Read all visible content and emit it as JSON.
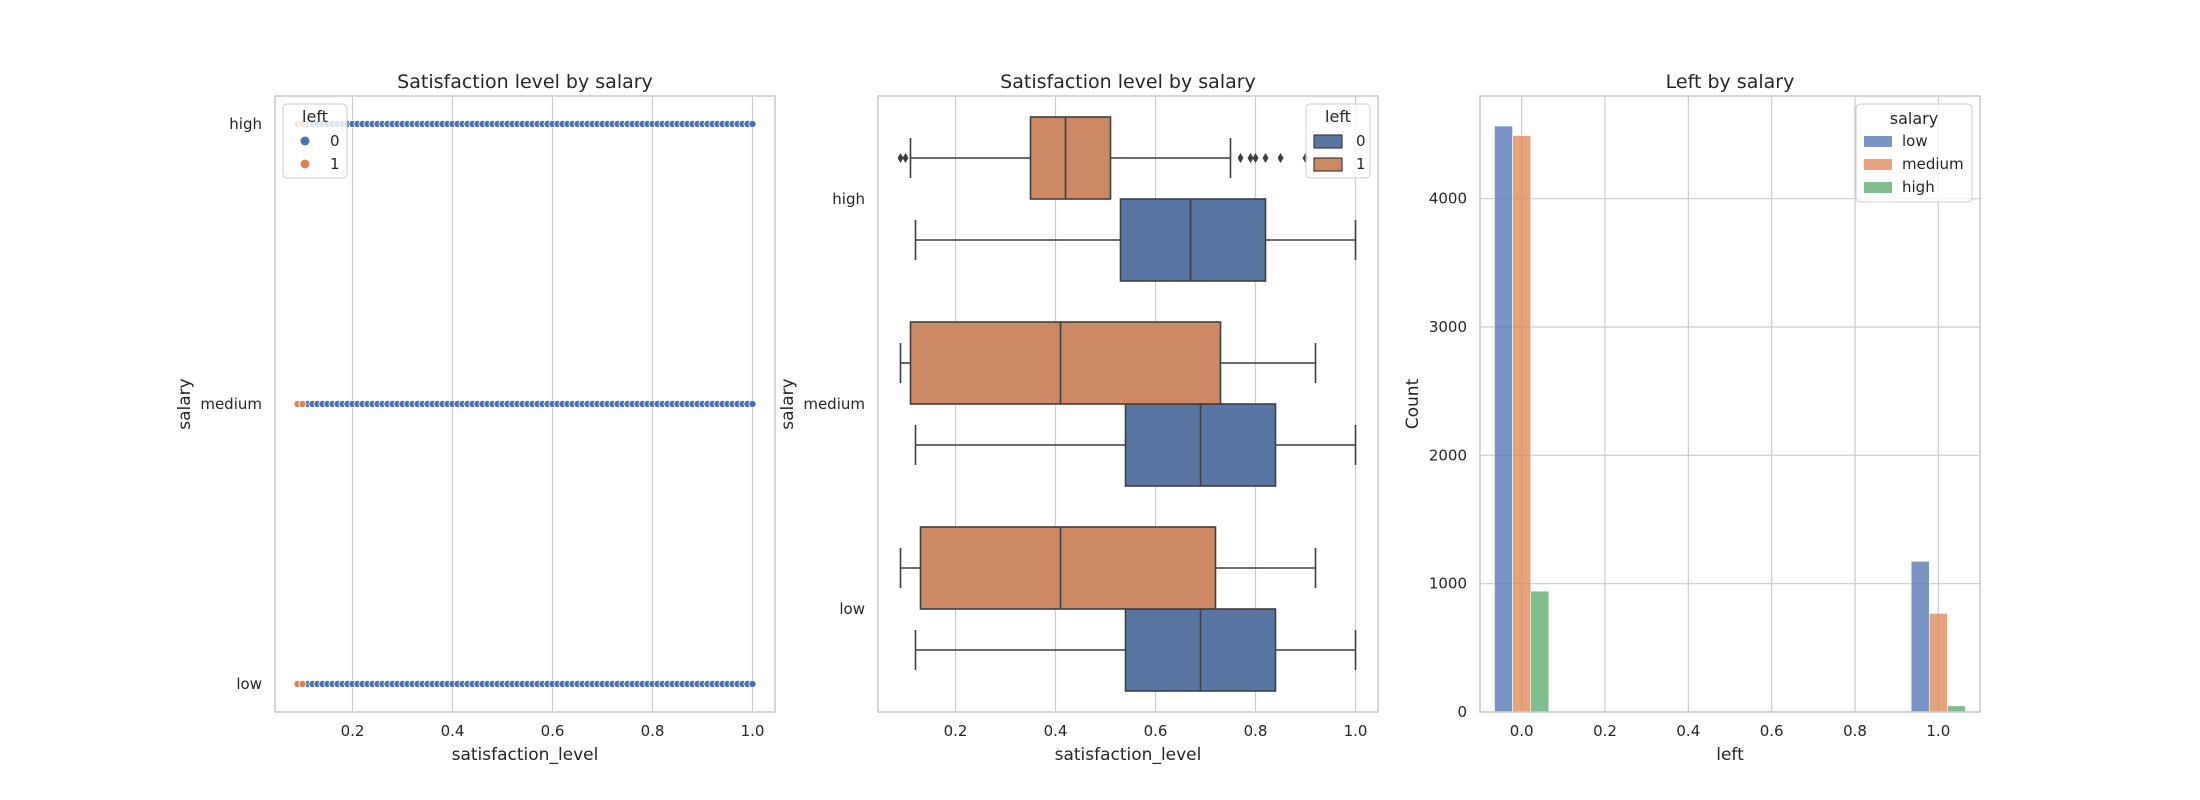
{
  "colors": {
    "blue": "#4c72b0",
    "orange": "#dd8452",
    "green": "#55a868",
    "box_blue": "#5975a4",
    "box_orange": "#cc8963",
    "grid": "#cccccc",
    "spine": "#cccccc",
    "text": "#262626"
  },
  "chart_data": [
    {
      "type": "scatter",
      "title": "Satisfaction level by salary",
      "xlabel": "satisfaction_level",
      "ylabel": "salary",
      "xlim": [
        0.045,
        1.045
      ],
      "xticks": [
        0.2,
        0.4,
        0.6,
        0.8,
        1.0
      ],
      "xtick_labels": [
        "0.2",
        "0.4",
        "0.6",
        "0.8",
        "1.0"
      ],
      "categories": [
        "high",
        "medium",
        "low"
      ],
      "grid": "vertical",
      "legend": {
        "title": "left",
        "placement": "top-left",
        "entries": [
          "0",
          "1"
        ]
      },
      "series": [
        {
          "name": "0",
          "color": "#4c72b0",
          "x_range": [
            0.11,
            1.0
          ],
          "step": 0.01,
          "categories": [
            "high",
            "medium",
            "low"
          ]
        },
        {
          "name": "1",
          "color": "#dd8452",
          "x_range": [
            0.09,
            0.1
          ],
          "step": 0.01,
          "categories": [
            "high",
            "medium",
            "low"
          ]
        }
      ]
    },
    {
      "type": "box",
      "title": "Satisfaction level by salary",
      "xlabel": "satisfaction_level",
      "ylabel": "salary",
      "xlim": [
        0.045,
        1.045
      ],
      "xticks": [
        0.2,
        0.4,
        0.6,
        0.8,
        1.0
      ],
      "xtick_labels": [
        "0.2",
        "0.4",
        "0.6",
        "0.8",
        "1.0"
      ],
      "categories": [
        "high",
        "medium",
        "low"
      ],
      "grid": "vertical",
      "legend": {
        "title": "left",
        "placement": "top-right",
        "entries": [
          "0",
          "1"
        ]
      },
      "series": [
        {
          "name": "0",
          "color": "#5975a4",
          "boxes": [
            {
              "category": "high",
              "whisker_low": 0.12,
              "q1": 0.53,
              "median": 0.67,
              "q3": 0.82,
              "whisker_high": 1.0,
              "outliers": []
            },
            {
              "category": "medium",
              "whisker_low": 0.12,
              "q1": 0.54,
              "median": 0.69,
              "q3": 0.84,
              "whisker_high": 1.0,
              "outliers": []
            },
            {
              "category": "low",
              "whisker_low": 0.12,
              "q1": 0.54,
              "median": 0.69,
              "q3": 0.84,
              "whisker_high": 1.0,
              "outliers": []
            }
          ]
        },
        {
          "name": "1",
          "color": "#cc8963",
          "boxes": [
            {
              "category": "high",
              "whisker_low": 0.11,
              "q1": 0.35,
              "median": 0.42,
              "q3": 0.51,
              "whisker_high": 0.75,
              "outliers": [
                0.09,
                0.1,
                0.77,
                0.79,
                0.8,
                0.82,
                0.85,
                0.9
              ]
            },
            {
              "category": "medium",
              "whisker_low": 0.09,
              "q1": 0.11,
              "median": 0.41,
              "q3": 0.73,
              "whisker_high": 0.92,
              "outliers": []
            },
            {
              "category": "low",
              "whisker_low": 0.09,
              "q1": 0.13,
              "median": 0.41,
              "q3": 0.72,
              "whisker_high": 0.92,
              "outliers": []
            }
          ]
        }
      ]
    },
    {
      "type": "bar",
      "title": "Left by salary",
      "xlabel": "left",
      "ylabel": "Count",
      "xlim": [
        -0.1,
        1.1
      ],
      "ylim": [
        0,
        4800
      ],
      "xticks": [
        0.0,
        0.2,
        0.4,
        0.6,
        0.8,
        1.0
      ],
      "xtick_labels": [
        "0.0",
        "0.2",
        "0.4",
        "0.6",
        "0.8",
        "1.0"
      ],
      "yticks": [
        0,
        1000,
        2000,
        3000,
        4000
      ],
      "ytick_labels": [
        "0",
        "1000",
        "2000",
        "3000",
        "4000"
      ],
      "grid": "both",
      "legend": {
        "title": "salary",
        "placement": "top-right",
        "entries": [
          "low",
          "medium",
          "high"
        ]
      },
      "categories": [
        0,
        1
      ],
      "bar_width": 0.0435,
      "series": [
        {
          "name": "low",
          "color": "#4c72b0",
          "offset": -0.0435,
          "values": [
            4566,
            1174
          ]
        },
        {
          "name": "medium",
          "color": "#dd8452",
          "offset": 0.0,
          "values": [
            4492,
            769
          ]
        },
        {
          "name": "high",
          "color": "#55a868",
          "offset": 0.0435,
          "values": [
            942,
            48
          ]
        }
      ]
    }
  ]
}
